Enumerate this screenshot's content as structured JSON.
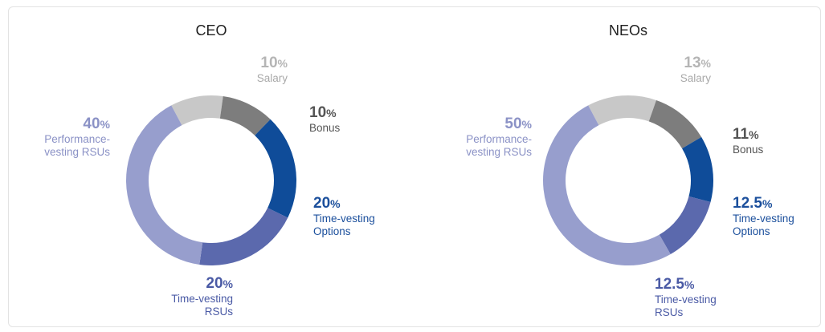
{
  "chart_data": [
    {
      "type": "pie",
      "title": "CEO",
      "slices": [
        {
          "value": 10,
          "value_label": "10",
          "label_lines": [
            "Salary"
          ],
          "color": "#c8c8c8"
        },
        {
          "value": 10,
          "value_label": "10",
          "label_lines": [
            "Bonus"
          ],
          "color": "#7d7d7d"
        },
        {
          "value": 20,
          "value_label": "20",
          "label_lines": [
            "Time-vesting",
            "Options"
          ],
          "color": "#0f4c99"
        },
        {
          "value": 20,
          "value_label": "20",
          "label_lines": [
            "Time-vesting",
            "RSUs"
          ],
          "color": "#5b69ad"
        },
        {
          "value": 40,
          "value_label": "40",
          "label_lines": [
            "Performance-",
            "vesting RSUs"
          ],
          "color": "#979ecd"
        }
      ]
    },
    {
      "type": "pie",
      "title": "NEOs",
      "slices": [
        {
          "value": 13,
          "value_label": "13",
          "label_lines": [
            "Salary"
          ],
          "color": "#c8c8c8"
        },
        {
          "value": 11,
          "value_label": "11",
          "label_lines": [
            "Bonus"
          ],
          "color": "#7d7d7d"
        },
        {
          "value": 12.5,
          "value_label": "12.5",
          "label_lines": [
            "Time-vesting",
            "Options"
          ],
          "color": "#0f4c99"
        },
        {
          "value": 12.5,
          "value_label": "12.5",
          "label_lines": [
            "Time-vesting",
            "RSUs"
          ],
          "color": "#5b69ad"
        },
        {
          "value": 50,
          "value_label": "50",
          "label_lines": [
            "Performance-",
            "vesting RSUs"
          ],
          "color": "#979ecd"
        }
      ]
    }
  ],
  "percent_symbol": "%"
}
